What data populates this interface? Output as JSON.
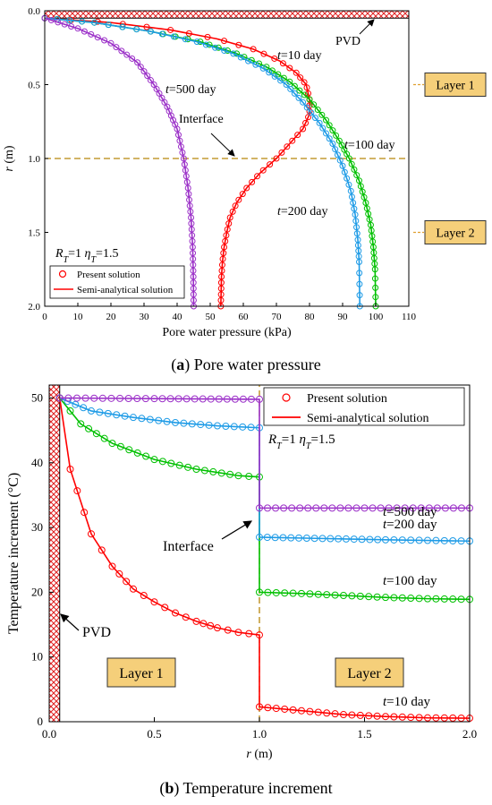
{
  "chart_data": [
    {
      "type": "line",
      "caption_letter": "a",
      "caption_text": "Pore water pressure",
      "xlabel": "Pore water pressure (kPa)",
      "ylabel_var": "r",
      "ylabel_unit": " (m)",
      "xlim": [
        0,
        110
      ],
      "ylim": [
        0,
        2
      ],
      "y_inverted": true,
      "xticks": [
        0,
        10,
        20,
        30,
        40,
        50,
        60,
        70,
        80,
        90,
        100,
        110
      ],
      "yticks": [
        "0.0",
        "0.5",
        "1.0",
        "1.5",
        "2.0"
      ],
      "pvd_label": "PVD",
      "interface_label": "Interface",
      "interface_r": 1.0,
      "layer_labels": [
        "Layer 1",
        "Layer 2"
      ],
      "params_text": {
        "RT": "=1",
        "etaT": "=1.5"
      },
      "legend": [
        "Present solution",
        "Semi-analytical solution"
      ],
      "series": [
        {
          "name": "t=10 day",
          "label_t": "t",
          "label_rest": "=10 day",
          "color": "#ff0000",
          "points": [
            [
              0,
              0.05
            ],
            [
              20,
              0.08
            ],
            [
              38,
              0.13
            ],
            [
              52,
              0.19
            ],
            [
              63,
              0.26
            ],
            [
              71,
              0.34
            ],
            [
              76,
              0.42
            ],
            [
              79,
              0.5
            ],
            [
              80,
              0.6
            ],
            [
              80,
              0.7
            ],
            [
              78,
              0.8
            ],
            [
              74,
              0.9
            ],
            [
              70,
              1.0
            ],
            [
              65,
              1.1
            ],
            [
              61,
              1.2
            ],
            [
              58,
              1.3
            ],
            [
              56,
              1.4
            ],
            [
              55,
              1.5
            ],
            [
              54.2,
              1.6
            ],
            [
              53.7,
              1.7
            ],
            [
              53.4,
              1.8
            ],
            [
              53.3,
              1.9
            ],
            [
              53.2,
              2.0
            ]
          ]
        },
        {
          "name": "t=100 day",
          "label_t": "t",
          "label_rest": "=100 day",
          "color": "#00c000",
          "points": [
            [
              0,
              0.05
            ],
            [
              15,
              0.08
            ],
            [
              32,
              0.14
            ],
            [
              47,
              0.21
            ],
            [
              58,
              0.29
            ],
            [
              67,
              0.38
            ],
            [
              74,
              0.48
            ],
            [
              80,
              0.6
            ],
            [
              85,
              0.74
            ],
            [
              89,
              0.88
            ],
            [
              92,
              1.0
            ],
            [
              95,
              1.15
            ],
            [
              97,
              1.3
            ],
            [
              98.5,
              1.45
            ],
            [
              99.3,
              1.6
            ],
            [
              99.8,
              1.75
            ],
            [
              100,
              2.0
            ]
          ]
        },
        {
          "name": "t=200 day",
          "label_t": "t",
          "label_rest": "=200 day",
          "color": "#1e9be6",
          "points": [
            [
              0,
              0.05
            ],
            [
              15,
              0.08
            ],
            [
              32,
              0.14
            ],
            [
              46,
              0.21
            ],
            [
              57,
              0.29
            ],
            [
              66,
              0.39
            ],
            [
              73,
              0.5
            ],
            [
              78,
              0.62
            ],
            [
              83,
              0.76
            ],
            [
              87,
              0.9
            ],
            [
              90,
              1.05
            ],
            [
              92.5,
              1.22
            ],
            [
              93.8,
              1.38
            ],
            [
              94.6,
              1.55
            ],
            [
              95,
              1.7
            ],
            [
              95.2,
              2.0
            ]
          ]
        },
        {
          "name": "t=500 day",
          "label_t": "t",
          "label_rest": "=500 day",
          "color": "#9b30c8",
          "points": [
            [
              0,
              0.05
            ],
            [
              10,
              0.12
            ],
            [
              20,
              0.22
            ],
            [
              28,
              0.35
            ],
            [
              33,
              0.5
            ],
            [
              37,
              0.65
            ],
            [
              40,
              0.8
            ],
            [
              42,
              1.0
            ],
            [
              43.3,
              1.2
            ],
            [
              44.2,
              1.4
            ],
            [
              44.7,
              1.6
            ],
            [
              44.9,
              1.8
            ],
            [
              45,
              2.0
            ]
          ]
        }
      ]
    },
    {
      "type": "line",
      "caption_letter": "b",
      "caption_text": "Temperature increment",
      "xlabel_var": "r",
      "xlabel_unit": " (m)",
      "ylabel": "Temperature increment (°C)",
      "xlim": [
        0,
        2
      ],
      "ylim": [
        0,
        52
      ],
      "xticks": [
        "0.0",
        "0.5",
        "1.0",
        "1.5",
        "2.0"
      ],
      "yticks": [
        0,
        10,
        20,
        30,
        40,
        50
      ],
      "pvd_label": "PVD",
      "interface_label": "Interface",
      "interface_r": 1.0,
      "layer_labels": [
        "Layer 1",
        "Layer 2"
      ],
      "params_text": {
        "RT": "=1",
        "etaT": "=1.5"
      },
      "legend": [
        "Present solution",
        "Semi-analytical solution"
      ],
      "series": [
        {
          "name": "t=10 day",
          "label_t": "t",
          "label_rest": "=10 day",
          "color": "#ff0000",
          "points": [
            [
              0.05,
              50
            ],
            [
              0.1,
              39
            ],
            [
              0.2,
              29
            ],
            [
              0.3,
              24
            ],
            [
              0.4,
              20.5
            ],
            [
              0.5,
              18.5
            ],
            [
              0.6,
              16.8
            ],
            [
              0.7,
              15.5
            ],
            [
              0.8,
              14.5
            ],
            [
              0.9,
              13.8
            ],
            [
              1.0,
              13.4
            ],
            [
              1.0,
              2.3
            ],
            [
              1.2,
              1.7
            ],
            [
              1.4,
              1.1
            ],
            [
              1.6,
              0.8
            ],
            [
              1.8,
              0.6
            ],
            [
              2.0,
              0.55
            ]
          ]
        },
        {
          "name": "t=100 day",
          "label_t": "t",
          "label_rest": "=100 day",
          "color": "#00c000",
          "points": [
            [
              0.05,
              50
            ],
            [
              0.15,
              46
            ],
            [
              0.3,
              43
            ],
            [
              0.5,
              40.5
            ],
            [
              0.7,
              39
            ],
            [
              0.9,
              38
            ],
            [
              1.0,
              37.8
            ],
            [
              1.0,
              20
            ],
            [
              1.2,
              19.8
            ],
            [
              1.4,
              19.5
            ],
            [
              1.6,
              19.2
            ],
            [
              1.8,
              19
            ],
            [
              2.0,
              18.9
            ]
          ]
        },
        {
          "name": "t=200 day",
          "label_t": "t",
          "label_rest": "=200 day",
          "color": "#1e9be6",
          "points": [
            [
              0.05,
              50
            ],
            [
              0.2,
              48
            ],
            [
              0.4,
              47
            ],
            [
              0.6,
              46.2
            ],
            [
              0.8,
              45.7
            ],
            [
              1.0,
              45.4
            ],
            [
              1.0,
              28.5
            ],
            [
              1.3,
              28.3
            ],
            [
              1.6,
              28.1
            ],
            [
              2.0,
              27.9
            ]
          ]
        },
        {
          "name": "t=500 day",
          "label_t": "t",
          "label_rest": "=500 day",
          "color": "#9b30c8",
          "points": [
            [
              0.05,
              50
            ],
            [
              0.5,
              49.9
            ],
            [
              1.0,
              49.8
            ],
            [
              1.0,
              33
            ],
            [
              1.5,
              33
            ],
            [
              2.0,
              33
            ]
          ]
        }
      ]
    }
  ]
}
